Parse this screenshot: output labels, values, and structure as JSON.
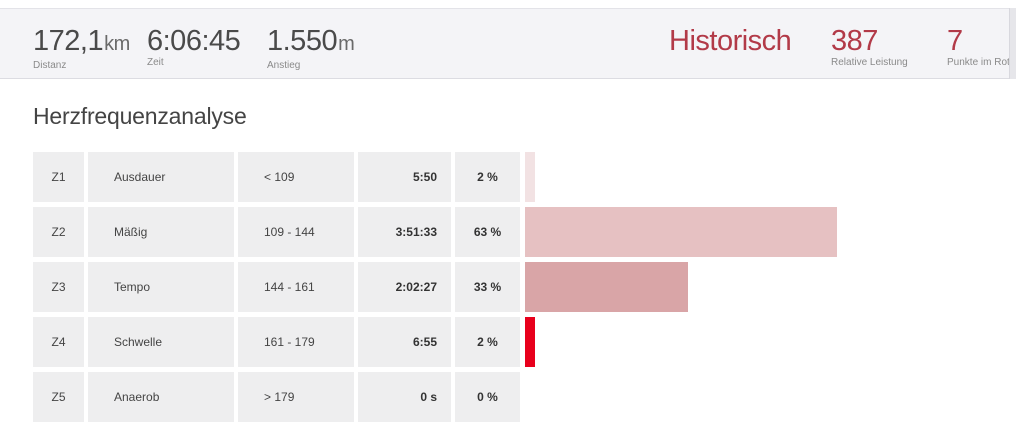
{
  "stats": {
    "distance": {
      "value": "172,1",
      "unit": "km",
      "label": "Distanz"
    },
    "time": {
      "value": "6:06:45",
      "label": "Zeit"
    },
    "climb": {
      "value": "1.550",
      "unit": "m",
      "label": "Anstieg"
    },
    "historic": {
      "value": "Historisch"
    },
    "relative_effort": {
      "value": "387",
      "label": "Relative Leistung"
    },
    "red_points": {
      "value": "7",
      "label": "Punkte im Rot"
    }
  },
  "section_title": "Herzfrequenzanalyse",
  "zones": [
    {
      "id": "Z1",
      "name": "Ausdauer",
      "range": "< 109",
      "time": "5:50",
      "percent": "2 %",
      "share": 2,
      "color": "#f2e2e3"
    },
    {
      "id": "Z2",
      "name": "Mäßig",
      "range": "109 - 144",
      "time": "3:51:33",
      "percent": "63 %",
      "share": 63,
      "color": "#e6c1c2"
    },
    {
      "id": "Z3",
      "name": "Tempo",
      "range": "144 - 161",
      "time": "2:02:27",
      "percent": "33 %",
      "share": 33,
      "color": "#d9a5a7"
    },
    {
      "id": "Z4",
      "name": "Schwelle",
      "range": "161 - 179",
      "time": "6:55",
      "percent": "2 %",
      "share": 2,
      "color": "#e8001c"
    },
    {
      "id": "Z5",
      "name": "Anaerob",
      "range": "> 179",
      "time": "0 s",
      "percent": "0 %",
      "share": 0,
      "color": "#f2e2e3"
    }
  ]
}
